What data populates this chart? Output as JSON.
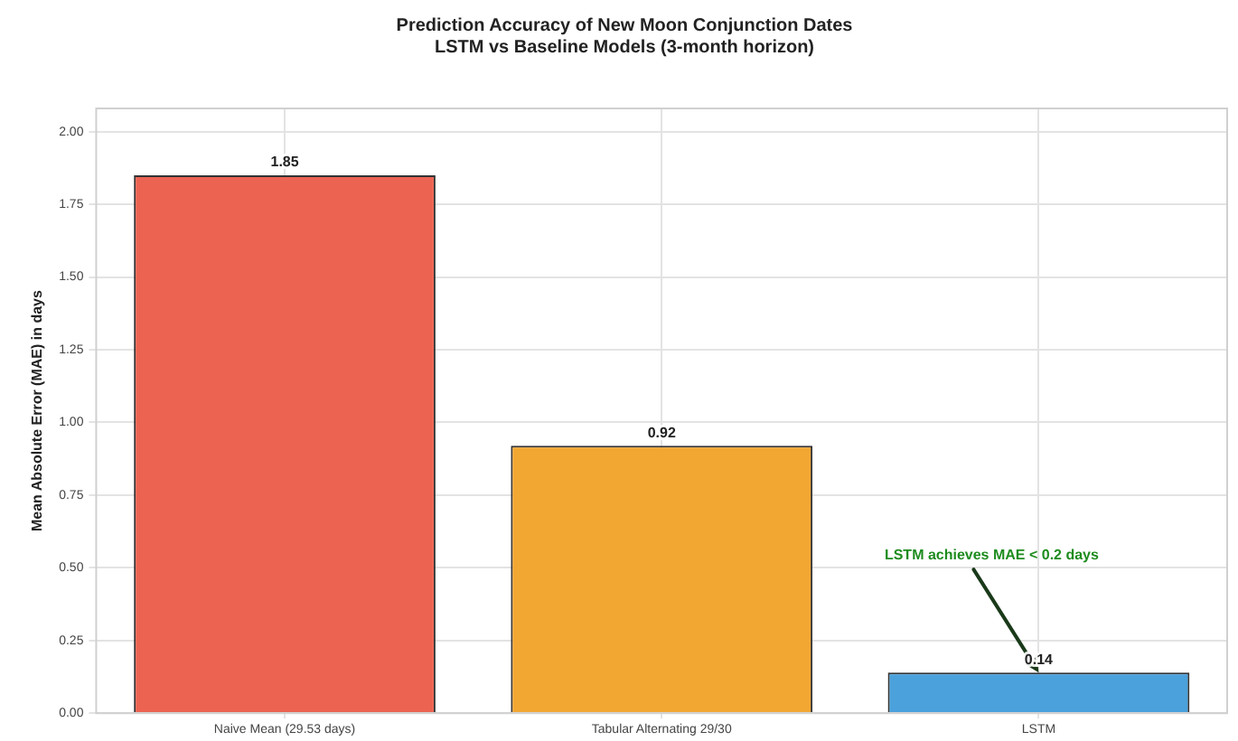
{
  "chart_data": {
    "type": "bar",
    "title": "Prediction Accuracy of New Moon Conjunction Dates\nLSTM vs Baseline Models (3-month horizon)",
    "ylabel": "Mean Absolute Error (MAE) in days",
    "categories": [
      "Naive Mean (29.53 days)",
      "Tabular Alternating 29/30",
      "LSTM"
    ],
    "values": [
      1.85,
      0.92,
      0.14
    ],
    "colors": [
      "#ec6352",
      "#f2a733",
      "#4aa1dc"
    ],
    "ylim": [
      0,
      2.08
    ],
    "yticks": [
      {
        "value": 0,
        "label": "0.00"
      },
      {
        "value": 0.25,
        "label": "0.25"
      },
      {
        "value": 0.5,
        "label": "0.50"
      },
      {
        "value": 0.75,
        "label": "0.75"
      },
      {
        "value": 1,
        "label": "1.00"
      },
      {
        "value": 1.25,
        "label": "1.25"
      },
      {
        "value": 1.5,
        "label": "1.50"
      },
      {
        "value": 1.75,
        "label": "1.75"
      },
      {
        "value": 2,
        "label": "2.00"
      }
    ],
    "grid": true,
    "data_labels": true,
    "annotations": [
      {
        "text": "LSTM achieves MAE < 0.2 days",
        "x": "LSTM",
        "y": 0.14
      }
    ]
  }
}
